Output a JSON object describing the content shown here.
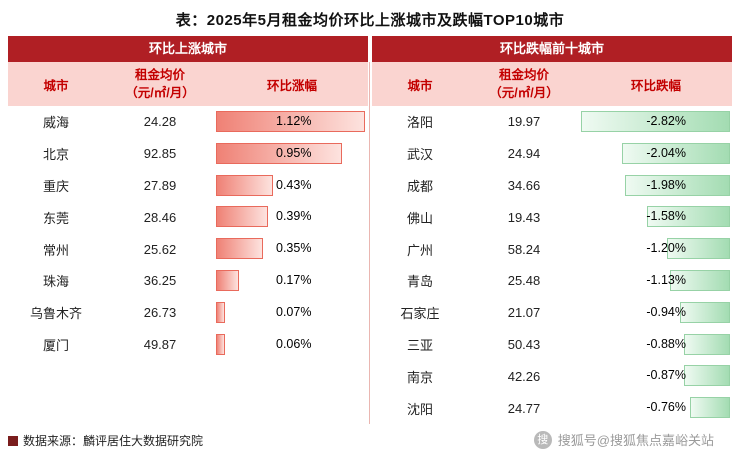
{
  "title": "表：2025年5月租金均价环比上涨城市及跌幅TOP10城市",
  "colors": {
    "header_red": "#b01f24",
    "subheader_bg": "#fad4d0",
    "subheader_text": "#c30000",
    "red_bar_main": "#ef8175",
    "red_bar_light": "#fde3df",
    "red_bar_border": "#e96a5c",
    "green_bar_light": "#effaf2",
    "green_bar_main": "#a3dcb2",
    "green_bar_border": "#97d2a6"
  },
  "left_panel": {
    "band_title": "环比上涨城市",
    "columns": {
      "city": "城市",
      "price_line1": "租金均价",
      "price_line2": "（元/㎡/月）",
      "change": "环比涨幅"
    },
    "rows": [
      {
        "city": "威海",
        "price": "24.28",
        "pct": 1.12,
        "pct_label": "1.12%"
      },
      {
        "city": "北京",
        "price": "92.85",
        "pct": 0.95,
        "pct_label": "0.95%"
      },
      {
        "city": "重庆",
        "price": "27.89",
        "pct": 0.43,
        "pct_label": "0.43%"
      },
      {
        "city": "东莞",
        "price": "28.46",
        "pct": 0.39,
        "pct_label": "0.39%"
      },
      {
        "city": "常州",
        "price": "25.62",
        "pct": 0.35,
        "pct_label": "0.35%"
      },
      {
        "city": "珠海",
        "price": "36.25",
        "pct": 0.17,
        "pct_label": "0.17%"
      },
      {
        "city": "乌鲁木齐",
        "price": "26.73",
        "pct": 0.07,
        "pct_label": "0.07%"
      },
      {
        "city": "厦门",
        "price": "49.87",
        "pct": 0.06,
        "pct_label": "0.06%"
      }
    ]
  },
  "right_panel": {
    "band_title": "环比跌幅前十城市",
    "columns": {
      "city": "城市",
      "price_line1": "租金均价",
      "price_line2": "（元/㎡/月）",
      "change": "环比跌幅"
    },
    "rows": [
      {
        "city": "洛阳",
        "price": "19.97",
        "pct": -2.82,
        "pct_label": "-2.82%"
      },
      {
        "city": "武汉",
        "price": "24.94",
        "pct": -2.04,
        "pct_label": "-2.04%"
      },
      {
        "city": "成都",
        "price": "34.66",
        "pct": -1.98,
        "pct_label": "-1.98%"
      },
      {
        "city": "佛山",
        "price": "19.43",
        "pct": -1.58,
        "pct_label": "-1.58%"
      },
      {
        "city": "广州",
        "price": "58.24",
        "pct": -1.2,
        "pct_label": "-1.20%"
      },
      {
        "city": "青岛",
        "price": "25.48",
        "pct": -1.13,
        "pct_label": "-1.13%"
      },
      {
        "city": "石家庄",
        "price": "21.07",
        "pct": -0.94,
        "pct_label": "-0.94%"
      },
      {
        "city": "三亚",
        "price": "50.43",
        "pct": -0.88,
        "pct_label": "-0.88%"
      },
      {
        "city": "南京",
        "price": "42.26",
        "pct": -0.87,
        "pct_label": "-0.87%"
      },
      {
        "city": "沈阳",
        "price": "24.77",
        "pct": -0.76,
        "pct_label": "-0.76%"
      }
    ]
  },
  "footer": {
    "source": "数据来源：麟评居住大数据研究院"
  },
  "watermark": {
    "badge": "搜",
    "text": "搜狐号@搜狐焦点嘉峪关站"
  },
  "chart_data": [
    {
      "type": "bar",
      "title": "环比上涨城市",
      "xlabel": "环比涨幅(%)",
      "ylabel": "城市",
      "categories": [
        "威海",
        "北京",
        "重庆",
        "东莞",
        "常州",
        "珠海",
        "乌鲁木齐",
        "厦门"
      ],
      "series": [
        {
          "name": "环比涨幅(%)",
          "values": [
            1.12,
            0.95,
            0.43,
            0.39,
            0.35,
            0.17,
            0.07,
            0.06
          ]
        },
        {
          "name": "租金均价(元/㎡/月)",
          "values": [
            24.28,
            92.85,
            27.89,
            28.46,
            25.62,
            36.25,
            26.73,
            49.87
          ]
        }
      ],
      "xlim": [
        0,
        1.12
      ],
      "grid": false,
      "legend_position": "none"
    },
    {
      "type": "bar",
      "title": "环比跌幅前十城市",
      "xlabel": "环比跌幅(%)",
      "ylabel": "城市",
      "categories": [
        "洛阳",
        "武汉",
        "成都",
        "佛山",
        "广州",
        "青岛",
        "石家庄",
        "三亚",
        "南京",
        "沈阳"
      ],
      "series": [
        {
          "name": "环比跌幅(%)",
          "values": [
            -2.82,
            -2.04,
            -1.98,
            -1.58,
            -1.2,
            -1.13,
            -0.94,
            -0.88,
            -0.87,
            -0.76
          ]
        },
        {
          "name": "租金均价(元/㎡/月)",
          "values": [
            19.97,
            24.94,
            34.66,
            19.43,
            58.24,
            25.48,
            21.07,
            50.43,
            42.26,
            24.77
          ]
        }
      ],
      "xlim": [
        -2.82,
        0
      ],
      "grid": false,
      "legend_position": "none"
    }
  ]
}
